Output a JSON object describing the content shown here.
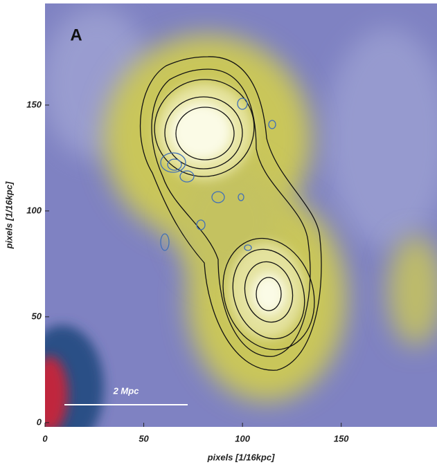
{
  "chart_data": {
    "type": "image",
    "panel_label": "A",
    "scale_bar_label": "2 Mpc",
    "x_label": "pixels [1/16kpc]",
    "y_label": "pixels [1/16kpc]",
    "xlim": [
      0,
      198.5
    ],
    "ylim": [
      -2,
      198
    ],
    "xticks": [
      0,
      50,
      100,
      150
    ],
    "yticks": [
      0,
      50,
      100,
      150
    ]
  }
}
